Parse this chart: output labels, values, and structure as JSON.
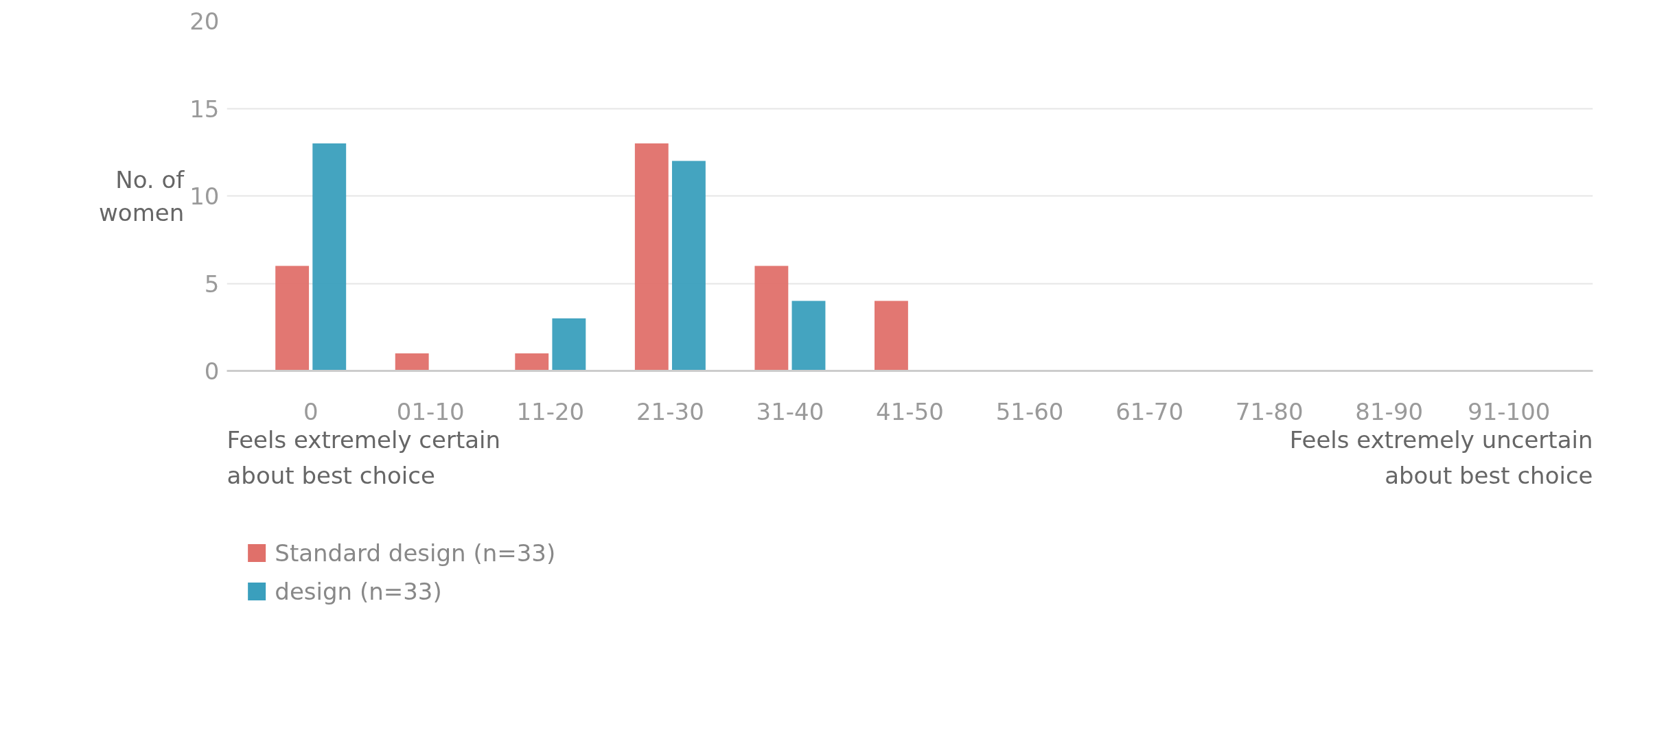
{
  "chart_data": {
    "type": "bar",
    "categories": [
      "0",
      "01-10",
      "11-20",
      "21-30",
      "31-40",
      "41-50",
      "51-60",
      "61-70",
      "71-80",
      "81-90",
      "91-100"
    ],
    "series": [
      {
        "name": "Standard design  (n=33)",
        "color": "#e0706a",
        "values": [
          6,
          1,
          1,
          13,
          6,
          4,
          0,
          0,
          0,
          0,
          0
        ]
      },
      {
        "name": "design (n=33)",
        "color": "#3a9fbd",
        "values": [
          13,
          0,
          3,
          12,
          4,
          0,
          0,
          0,
          0,
          0,
          0
        ]
      }
    ],
    "ylabel": "No. of\nwomen",
    "ylim": [
      0,
      20
    ],
    "yticks": [
      0,
      5,
      10,
      15,
      20
    ],
    "grid": "y",
    "legend": "bottom",
    "annotations": [
      "Feels extremely certain\nabout best choice",
      "Feels extremely uncertain\nabout best choice"
    ]
  }
}
